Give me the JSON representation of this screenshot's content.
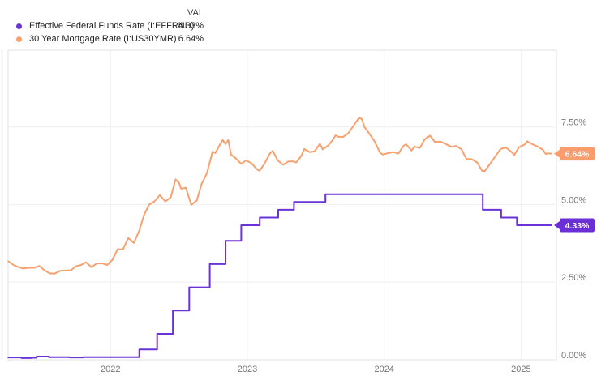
{
  "legend": {
    "header": "VAL"
  },
  "colors": {
    "grid": "#efefef",
    "plot_border": "#ececec",
    "left_axis_line": "#e4e4e4",
    "axis_label": "#757575",
    "legend_text": "#1f1f1f",
    "badge_text": "#ffffff"
  },
  "chart_data": {
    "type": "line",
    "title": "",
    "xlabel": "",
    "ylabel": "",
    "grid": true,
    "legend_position": "top-left",
    "x_range": [
      2021.253,
      2025.26
    ],
    "y_range": [
      0,
      9.97
    ],
    "x_ticks": [
      {
        "value": 2022,
        "label": "2022"
      },
      {
        "value": 2023,
        "label": "2023"
      },
      {
        "value": 2024,
        "label": "2024"
      },
      {
        "value": 2025,
        "label": "2025"
      }
    ],
    "y_ticks": [
      {
        "value": 0,
        "label": "0.00%"
      },
      {
        "value": 2.5,
        "label": "2.50%"
      },
      {
        "value": 5,
        "label": "5.00%"
      },
      {
        "value": 7.5,
        "label": "7.50%"
      }
    ],
    "series": [
      {
        "id": "effr",
        "name": "Effective Federal Funds Rate (I:EFFRND)",
        "value_label": "4.33%",
        "last_value": 4.33,
        "color": "#6a33d8",
        "badge_color": "#6b2fd6",
        "line_style": "step",
        "points": [
          [
            2021.253,
            0.07
          ],
          [
            2021.35,
            0.05
          ],
          [
            2021.42,
            0.06
          ],
          [
            2021.46,
            0.1
          ],
          [
            2021.55,
            0.08
          ],
          [
            2021.62,
            0.08
          ],
          [
            2021.7,
            0.07
          ],
          [
            2021.8,
            0.08
          ],
          [
            2021.9,
            0.08
          ],
          [
            2022.0,
            0.08
          ],
          [
            2022.1,
            0.08
          ],
          [
            2022.21,
            0.33
          ],
          [
            2022.34,
            0.83
          ],
          [
            2022.455,
            1.58
          ],
          [
            2022.575,
            2.33
          ],
          [
            2022.725,
            3.08
          ],
          [
            2022.84,
            3.83
          ],
          [
            2022.955,
            4.33
          ],
          [
            2023.09,
            4.58
          ],
          [
            2023.225,
            4.83
          ],
          [
            2023.34,
            5.08
          ],
          [
            2023.57,
            5.33
          ],
          [
            2024.72,
            4.83
          ],
          [
            2024.855,
            4.58
          ],
          [
            2024.97,
            4.33
          ],
          [
            2025.22,
            4.33
          ]
        ]
      },
      {
        "id": "us30ymr",
        "name": "30 Year Mortgage Rate (I:US30YMR)",
        "value_label": "6.64%",
        "last_value": 6.64,
        "color": "#f8a06e",
        "badge_color": "#f89d6e",
        "line_style": "linear",
        "points": [
          [
            2021.253,
            3.17
          ],
          [
            2021.29,
            3.05
          ],
          [
            2021.327,
            2.98
          ],
          [
            2021.36,
            2.94
          ],
          [
            2021.4,
            2.96
          ],
          [
            2021.44,
            2.96
          ],
          [
            2021.48,
            3.02
          ],
          [
            2021.517,
            2.88
          ],
          [
            2021.556,
            2.78
          ],
          [
            2021.59,
            2.77
          ],
          [
            2021.63,
            2.86
          ],
          [
            2021.67,
            2.87
          ],
          [
            2021.71,
            2.88
          ],
          [
            2021.745,
            3.01
          ],
          [
            2021.785,
            3.05
          ],
          [
            2021.82,
            3.14
          ],
          [
            2021.86,
            2.98
          ],
          [
            2021.9,
            3.1
          ],
          [
            2021.94,
            3.1
          ],
          [
            2021.975,
            3.05
          ],
          [
            2022.014,
            3.22
          ],
          [
            2022.052,
            3.56
          ],
          [
            2022.09,
            3.55
          ],
          [
            2022.13,
            3.92
          ],
          [
            2022.17,
            3.76
          ],
          [
            2022.21,
            4.16
          ],
          [
            2022.245,
            4.67
          ],
          [
            2022.283,
            5.0
          ],
          [
            2022.32,
            5.1
          ],
          [
            2022.36,
            5.3
          ],
          [
            2022.4,
            5.1
          ],
          [
            2022.44,
            5.23
          ],
          [
            2022.475,
            5.81
          ],
          [
            2022.5,
            5.7
          ],
          [
            2022.515,
            5.51
          ],
          [
            2022.55,
            5.54
          ],
          [
            2022.59,
            4.99
          ],
          [
            2022.63,
            5.13
          ],
          [
            2022.665,
            5.66
          ],
          [
            2022.705,
            6.02
          ],
          [
            2022.745,
            6.7
          ],
          [
            2022.765,
            6.66
          ],
          [
            2022.8,
            6.94
          ],
          [
            2022.82,
            7.08
          ],
          [
            2022.84,
            6.95
          ],
          [
            2022.86,
            7.08
          ],
          [
            2022.88,
            6.61
          ],
          [
            2022.915,
            6.49
          ],
          [
            2022.955,
            6.31
          ],
          [
            2022.99,
            6.42
          ],
          [
            2023.03,
            6.33
          ],
          [
            2023.07,
            6.13
          ],
          [
            2023.09,
            6.09
          ],
          [
            2023.125,
            6.32
          ],
          [
            2023.165,
            6.65
          ],
          [
            2023.185,
            6.73
          ],
          [
            2023.222,
            6.42
          ],
          [
            2023.26,
            6.28
          ],
          [
            2023.3,
            6.39
          ],
          [
            2023.34,
            6.39
          ],
          [
            2023.355,
            6.35
          ],
          [
            2023.395,
            6.57
          ],
          [
            2023.415,
            6.79
          ],
          [
            2023.455,
            6.69
          ],
          [
            2023.49,
            6.71
          ],
          [
            2023.53,
            6.96
          ],
          [
            2023.55,
            6.78
          ],
          [
            2023.59,
            6.9
          ],
          [
            2023.625,
            7.09
          ],
          [
            2023.645,
            7.23
          ],
          [
            2023.665,
            7.18
          ],
          [
            2023.7,
            7.18
          ],
          [
            2023.74,
            7.31
          ],
          [
            2023.78,
            7.57
          ],
          [
            2023.815,
            7.79
          ],
          [
            2023.835,
            7.76
          ],
          [
            2023.855,
            7.5
          ],
          [
            2023.89,
            7.29
          ],
          [
            2023.93,
            7.03
          ],
          [
            2023.97,
            6.67
          ],
          [
            2023.99,
            6.61
          ],
          [
            2024.03,
            6.66
          ],
          [
            2024.066,
            6.69
          ],
          [
            2024.104,
            6.64
          ],
          [
            2024.142,
            6.9
          ],
          [
            2024.16,
            6.94
          ],
          [
            2024.2,
            6.74
          ],
          [
            2024.22,
            6.87
          ],
          [
            2024.26,
            6.82
          ],
          [
            2024.295,
            7.1
          ],
          [
            2024.335,
            7.22
          ],
          [
            2024.37,
            7.02
          ],
          [
            2024.41,
            7.03
          ],
          [
            2024.45,
            6.95
          ],
          [
            2024.49,
            6.86
          ],
          [
            2024.525,
            6.89
          ],
          [
            2024.565,
            6.78
          ],
          [
            2024.6,
            6.47
          ],
          [
            2024.64,
            6.46
          ],
          [
            2024.68,
            6.35
          ],
          [
            2024.715,
            6.09
          ],
          [
            2024.735,
            6.08
          ],
          [
            2024.775,
            6.32
          ],
          [
            2024.81,
            6.54
          ],
          [
            2024.85,
            6.79
          ],
          [
            2024.89,
            6.84
          ],
          [
            2024.93,
            6.69
          ],
          [
            2024.95,
            6.6
          ],
          [
            2024.985,
            6.85
          ],
          [
            2025.025,
            6.93
          ],
          [
            2025.045,
            7.04
          ],
          [
            2025.08,
            6.95
          ],
          [
            2025.12,
            6.87
          ],
          [
            2025.16,
            6.76
          ],
          [
            2025.18,
            6.63
          ],
          [
            2025.2,
            6.65
          ],
          [
            2025.22,
            6.64
          ]
        ]
      }
    ]
  }
}
